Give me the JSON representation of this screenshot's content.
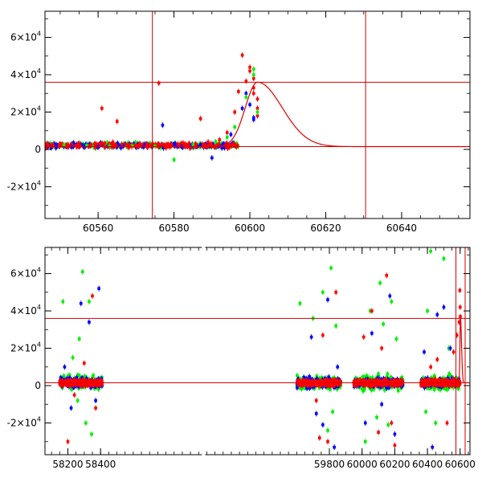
{
  "chart_data": [
    {
      "type": "scatter",
      "name": "top-panel",
      "xlim": [
        60546,
        60658
      ],
      "ylim": [
        -37000,
        74000
      ],
      "xticks": [
        60560,
        60580,
        60600,
        60620,
        60640
      ],
      "yticks": [
        {
          "value": -20000,
          "mantissa": "-2",
          "exp": "4"
        },
        {
          "value": 0,
          "mantissa": "0",
          "exp": ""
        },
        {
          "value": 20000,
          "mantissa": "2",
          "exp": "4"
        },
        {
          "value": 40000,
          "mantissa": "4",
          "exp": "4"
        },
        {
          "value": 60000,
          "mantissa": "6",
          "exp": "4"
        }
      ],
      "hlines": [
        1500,
        36000
      ],
      "vlines": [
        60574.3,
        60630.5
      ],
      "model_curve": {
        "color": "#e00000",
        "baseline": 1500,
        "peak_x": 60602,
        "peak_y": 36000,
        "rise_tau": 3.2,
        "decay_tau": 6.5
      },
      "series": [
        {
          "color": "#ff0000",
          "points": [
            [
              60548,
              2200
            ],
            [
              60550,
              3100
            ],
            [
              60552,
              1800
            ],
            [
              60555,
              2700
            ],
            [
              60558,
              2300
            ],
            [
              60561,
              22000
            ],
            [
              60563,
              3000
            ],
            [
              60565,
              15000
            ],
            [
              60568,
              2500
            ],
            [
              60571,
              3200
            ],
            [
              60574,
              2000
            ],
            [
              60576,
              35500
            ],
            [
              60578,
              2600
            ],
            [
              60581,
              2900
            ],
            [
              60584,
              3300
            ],
            [
              60587,
              16500
            ],
            [
              60589,
              4000
            ],
            [
              60592,
              5200
            ],
            [
              60594,
              9000
            ],
            [
              60596,
              20000
            ],
            [
              60597,
              31000
            ],
            [
              60598,
              50500
            ],
            [
              60599,
              36500
            ],
            [
              60600,
              44000
            ],
            [
              60600,
              42000
            ],
            [
              60601,
              38000
            ],
            [
              60601,
              33000
            ],
            [
              60601,
              30000
            ],
            [
              60602,
              27000
            ],
            [
              60602,
              22000
            ],
            [
              60602,
              18000
            ]
          ]
        },
        {
          "color": "#0000ff",
          "points": [
            [
              60549,
              1500
            ],
            [
              60553,
              1200
            ],
            [
              60556,
              1800
            ],
            [
              60560,
              1400
            ],
            [
              60566,
              900
            ],
            [
              60572,
              1300
            ],
            [
              60577,
              13000
            ],
            [
              60582,
              1500
            ],
            [
              60587,
              2500
            ],
            [
              60590,
              -4500
            ],
            [
              60593,
              3000
            ],
            [
              60595,
              8000
            ],
            [
              60598,
              22000
            ],
            [
              60599,
              30000
            ],
            [
              60600,
              24000
            ],
            [
              60601,
              17000
            ],
            [
              60601,
              16000
            ]
          ]
        },
        {
          "color": "#00ee00",
          "points": [
            [
              60551,
              2500
            ],
            [
              60557,
              2200
            ],
            [
              60563,
              1800
            ],
            [
              60569,
              2000
            ],
            [
              60575,
              1800
            ],
            [
              60580,
              -5500
            ],
            [
              60585,
              2600
            ],
            [
              60591,
              4200
            ],
            [
              60594,
              6500
            ],
            [
              60596,
              12000
            ],
            [
              60599,
              28000
            ],
            [
              60601,
              43000
            ],
            [
              60601,
              40000
            ],
            [
              60602,
              20000
            ]
          ]
        }
      ],
      "dense_cluster": {
        "x_range": [
          60546,
          60597
        ],
        "y_center": 2200,
        "y_spread": 1800
      }
    },
    {
      "type": "scatter",
      "name": "bottom-panel",
      "xlim": [
        58060,
        60660
      ],
      "ylim": [
        -37000,
        74000
      ],
      "xticks": [
        58200,
        58400,
        59800,
        60000,
        60200,
        60400,
        60600
      ],
      "yticks": [
        {
          "value": -20000,
          "mantissa": "-2",
          "exp": "4"
        },
        {
          "value": 0,
          "mantissa": "0",
          "exp": ""
        },
        {
          "value": 20000,
          "mantissa": "2",
          "exp": "4"
        },
        {
          "value": 40000,
          "mantissa": "4",
          "exp": "4"
        },
        {
          "value": 60000,
          "mantissa": "6",
          "exp": "4"
        }
      ],
      "x_break": [
        58480,
        59580
      ],
      "hlines": [
        1500,
        36000
      ],
      "vlines": [
        60574.3,
        60630.5
      ],
      "model_curve": {
        "color": "#e00000",
        "baseline": 1500,
        "peak_x": 60602,
        "peak_y": 36000,
        "rise_tau": 3.2,
        "decay_tau": 6.5
      },
      "seasons": [
        [
          58150,
          58410
        ],
        [
          59600,
          59870
        ],
        [
          59950,
          60250
        ],
        [
          60360,
          60600
        ]
      ],
      "outliers": [
        {
          "color": "#00ee00",
          "points": [
            [
              58170,
              45000
            ],
            [
              58230,
              15000
            ],
            [
              58260,
              -8000
            ],
            [
              58270,
              25000
            ],
            [
              58290,
              61000
            ],
            [
              58310,
              -20000
            ],
            [
              58330,
              45000
            ],
            [
              58345,
              -26000
            ],
            [
              59620,
              44000
            ],
            [
              59700,
              36000
            ],
            [
              59760,
              50000
            ],
            [
              59790,
              -24000
            ],
            [
              59810,
              63000
            ],
            [
              59820,
              -14000
            ],
            [
              59840,
              32000
            ],
            [
              60020,
              -30000
            ],
            [
              60050,
              40000
            ],
            [
              60090,
              -17000
            ],
            [
              60110,
              55000
            ],
            [
              60130,
              33000
            ],
            [
              60160,
              -21000
            ],
            [
              60180,
              45000
            ],
            [
              60210,
              25000
            ],
            [
              60390,
              -14000
            ],
            [
              60400,
              40000
            ],
            [
              60420,
              72000
            ],
            [
              60450,
              -20000
            ],
            [
              60500,
              68000
            ],
            [
              60530,
              20000
            ]
          ]
        },
        {
          "color": "#0000ff",
          "points": [
            [
              58180,
              10000
            ],
            [
              58220,
              -12000
            ],
            [
              58280,
              44000
            ],
            [
              58330,
              34000
            ],
            [
              58370,
              -8000
            ],
            [
              58390,
              52000
            ],
            [
              59690,
              26000
            ],
            [
              59720,
              -15000
            ],
            [
              59760,
              -21000
            ],
            [
              59790,
              46000
            ],
            [
              59830,
              -33000
            ],
            [
              59850,
              10000
            ],
            [
              60020,
              -20000
            ],
            [
              60060,
              28000
            ],
            [
              60120,
              -10000
            ],
            [
              60170,
              48000
            ],
            [
              60200,
              -26000
            ],
            [
              60380,
              18000
            ],
            [
              60430,
              -33000
            ],
            [
              60460,
              38000
            ],
            [
              60500,
              42000
            ],
            [
              60540,
              20000
            ]
          ]
        },
        {
          "color": "#ff0000",
          "points": [
            [
              58200,
              -30000
            ],
            [
              58240,
              -5000
            ],
            [
              58300,
              12000
            ],
            [
              58350,
              48000
            ],
            [
              58370,
              -12000
            ],
            [
              59720,
              -8000
            ],
            [
              59740,
              -28000
            ],
            [
              59760,
              27000
            ],
            [
              59790,
              -30000
            ],
            [
              59840,
              50000
            ],
            [
              60010,
              26000
            ],
            [
              60060,
              40000
            ],
            [
              60100,
              -25000
            ],
            [
              60120,
              20000
            ],
            [
              60150,
              59000
            ],
            [
              60180,
              -20000
            ],
            [
              60200,
              -32000
            ],
            [
              60420,
              10000
            ],
            [
              60460,
              14000
            ],
            [
              60520,
              -20000
            ],
            [
              60560,
              18000
            ],
            [
              60580,
              27000
            ],
            [
              60594,
              34000
            ],
            [
              60598,
              51000
            ],
            [
              60600,
              42000
            ],
            [
              60601,
              37000
            ]
          ]
        }
      ]
    }
  ]
}
